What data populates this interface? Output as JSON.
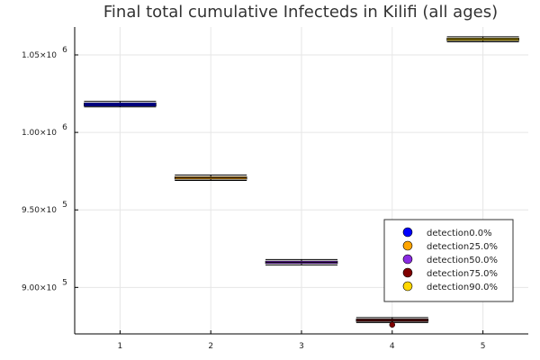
{
  "chart_data": {
    "type": "box",
    "title": "Final total cumulative Infecteds in Kilifi (all ages)",
    "xlabel": "",
    "ylabel": "",
    "grid": true,
    "legend_position": "lower-right",
    "x_ticks": [
      "1",
      "2",
      "3",
      "4",
      "5"
    ],
    "y_ticks": [
      {
        "value": 900000,
        "mantissa": "9.00×10",
        "exponent": "5"
      },
      {
        "value": 950000,
        "mantissa": "9.50×10",
        "exponent": "5"
      },
      {
        "value": 1000000,
        "mantissa": "1.00×10",
        "exponent": "6"
      },
      {
        "value": 1050000,
        "mantissa": "1.05×10",
        "exponent": "6"
      }
    ],
    "ylim": [
      870000,
      1068000
    ],
    "xlim": [
      0.5,
      5.5
    ],
    "series": [
      {
        "name": "detection0.0%",
        "color": "#0000FF",
        "x": 1,
        "median": 1018000,
        "q1": 1017000,
        "q3": 1019000,
        "low": 1016500,
        "high": 1020000
      },
      {
        "name": "detection25.0%",
        "color": "#FFA500",
        "x": 2,
        "median": 970600,
        "q1": 969800,
        "q3": 971400,
        "low": 969000,
        "high": 972500
      },
      {
        "name": "detection50.0%",
        "color": "#8A2BE2",
        "x": 3,
        "median": 916200,
        "q1": 915400,
        "q3": 917000,
        "low": 914500,
        "high": 918000
      },
      {
        "name": "detection75.0%",
        "color": "#800000",
        "x": 4,
        "median": 878800,
        "q1": 878000,
        "q3": 879600,
        "low": 877300,
        "high": 880500,
        "outliers": [
          875900
        ]
      },
      {
        "name": "detection90.0%",
        "color": "#FFD700",
        "x": 5,
        "median": 1060000,
        "q1": 1059200,
        "q3": 1060800,
        "low": 1058500,
        "high": 1061700
      }
    ]
  }
}
